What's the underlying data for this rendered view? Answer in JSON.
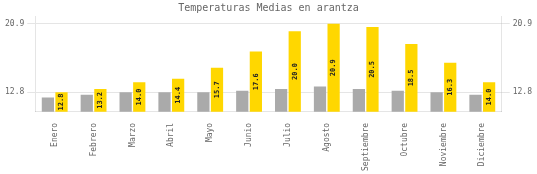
{
  "chart_data": {
    "type": "bar",
    "title": "Temperaturas Medias en arantza",
    "categories": [
      "Enero",
      "Febrero",
      "Marzo",
      "Abril",
      "Mayo",
      "Junio",
      "Julio",
      "Agosto",
      "Septiembre",
      "Octubre",
      "Noviembre",
      "Diciembre"
    ],
    "series": [
      {
        "color": "#AAAAAA",
        "values": [
          12.2,
          12.5,
          12.8,
          12.8,
          12.8,
          13.0,
          13.2,
          13.5,
          13.2,
          13.0,
          12.8,
          12.5
        ]
      },
      {
        "color": "#FFD700",
        "values": [
          12.8,
          13.2,
          14.0,
          14.4,
          15.7,
          17.6,
          20.0,
          20.9,
          20.5,
          18.5,
          16.3,
          14.0
        ],
        "value_labels": [
          "12.8",
          "13.2",
          "14.0",
          "14.4",
          "15.7",
          "17.6",
          "20.0",
          "20.9",
          "20.5",
          "18.5",
          "16.3",
          "14.0"
        ],
        "data_labels": true
      }
    ],
    "ylim": [
      10.5,
      21.8
    ],
    "yticks": [
      12.8,
      20.9
    ],
    "y2lim": [
      10.5,
      21.8
    ],
    "y2ticks": [
      12.8,
      20.9
    ],
    "grid": true
  }
}
